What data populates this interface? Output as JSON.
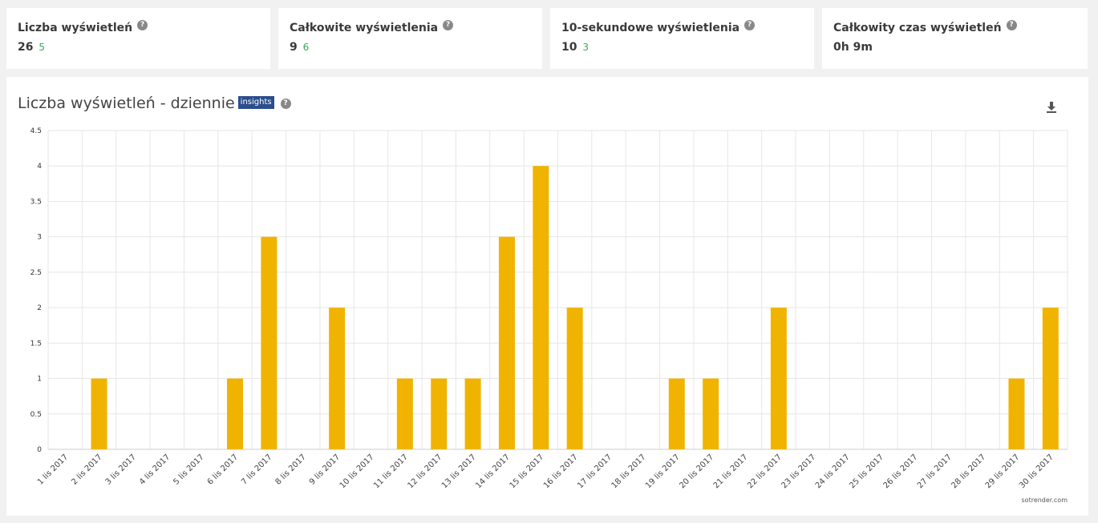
{
  "stats": [
    {
      "label": "Liczba wyświetleń",
      "value": "26",
      "delta": "5"
    },
    {
      "label": "Całkowite wyświetlenia",
      "value": "9",
      "delta": "6"
    },
    {
      "label": "10-sekundowe wyświetlenia",
      "value": "10",
      "delta": "3"
    },
    {
      "label": "Całkowity czas wyświetleń",
      "value": "0h 9m",
      "delta": ""
    }
  ],
  "panel": {
    "title": "Liczba wyświetleń - dziennie",
    "badge": "insights",
    "help": "?",
    "watermark": "sotrender.com"
  },
  "help_glyph": "?",
  "colors": {
    "bar": "#f0b400",
    "badge": "#2b4e8c",
    "delta": "#3aa757"
  },
  "chart_data": {
    "type": "bar",
    "categories": [
      "1 lis 2017",
      "2 lis 2017",
      "3 lis 2017",
      "4 lis 2017",
      "5 lis 2017",
      "6 lis 2017",
      "7 lis 2017",
      "8 lis 2017",
      "9 lis 2017",
      "10 lis 2017",
      "11 lis 2017",
      "12 lis 2017",
      "13 lis 2017",
      "14 lis 2017",
      "15 lis 2017",
      "16 lis 2017",
      "17 lis 2017",
      "18 lis 2017",
      "19 lis 2017",
      "20 lis 2017",
      "21 lis 2017",
      "22 lis 2017",
      "23 lis 2017",
      "24 lis 2017",
      "25 lis 2017",
      "26 lis 2017",
      "27 lis 2017",
      "28 lis 2017",
      "29 lis 2017",
      "30 lis 2017"
    ],
    "values": [
      0,
      1,
      0,
      0,
      0,
      1,
      3,
      0,
      2,
      0,
      1,
      1,
      1,
      3,
      4,
      2,
      0,
      0,
      1,
      1,
      0,
      2,
      0,
      0,
      0,
      0,
      0,
      0,
      1,
      2
    ],
    "ylim": [
      0,
      4.5
    ],
    "yticks": [
      0,
      0.5,
      1,
      1.5,
      2,
      2.5,
      3,
      3.5,
      4,
      4.5
    ],
    "ytick_labels": [
      "0",
      "0.5",
      "1",
      "1.5",
      "2",
      "2.5",
      "3",
      "3.5",
      "4",
      "4.5"
    ],
    "grid": true
  }
}
